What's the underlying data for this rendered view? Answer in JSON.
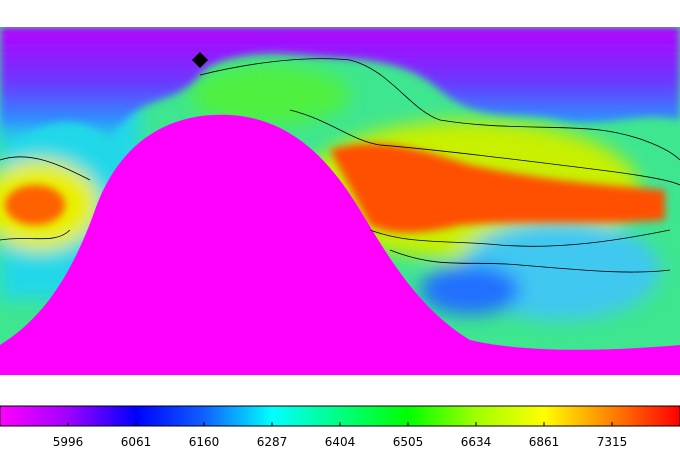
{
  "colorbar": {
    "ticks": [
      5996,
      6061,
      6160,
      6287,
      6404,
      6505,
      6634,
      6861,
      7315
    ]
  }
}
